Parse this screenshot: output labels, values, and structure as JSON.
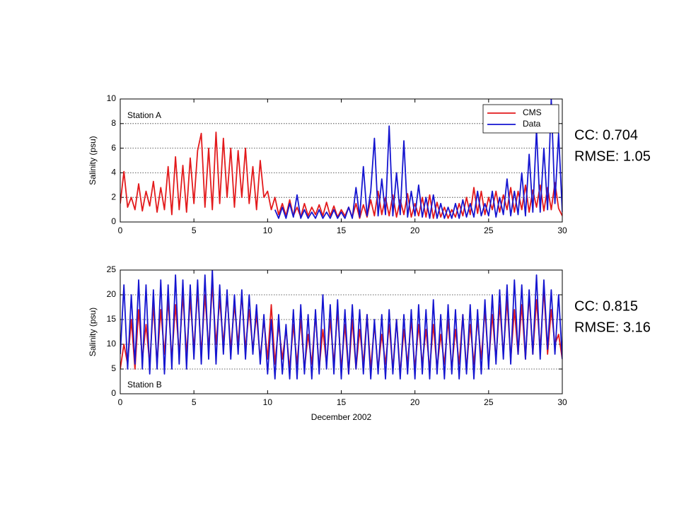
{
  "chart_data": [
    {
      "type": "line",
      "label": "Station A",
      "ylabel": "Salinity (psu)",
      "stats": [
        "CC: 0.704",
        "RMSE: 1.05"
      ],
      "xlim": [
        0,
        30
      ],
      "xticks": [
        0,
        5,
        10,
        15,
        20,
        25,
        30
      ],
      "ylim": [
        0,
        10
      ],
      "yticks": [
        0,
        2,
        4,
        6,
        8,
        10
      ],
      "grid": true,
      "legend": "upper right",
      "x": [
        0,
        0.25,
        0.5,
        0.75,
        1,
        1.25,
        1.5,
        1.75,
        2,
        2.25,
        2.5,
        2.75,
        3,
        3.25,
        3.5,
        3.75,
        4,
        4.25,
        4.5,
        4.75,
        5,
        5.25,
        5.5,
        5.75,
        6,
        6.25,
        6.5,
        6.75,
        7,
        7.25,
        7.5,
        7.75,
        8,
        8.25,
        8.5,
        8.75,
        9,
        9.25,
        9.5,
        9.75,
        10,
        10.25,
        10.5,
        10.75,
        11,
        11.25,
        11.5,
        11.75,
        12,
        12.25,
        12.5,
        12.75,
        13,
        13.25,
        13.5,
        13.75,
        14,
        14.25,
        14.5,
        14.75,
        15,
        15.25,
        15.5,
        15.75,
        16,
        16.25,
        16.5,
        16.75,
        17,
        17.25,
        17.5,
        17.75,
        18,
        18.25,
        18.5,
        18.75,
        19,
        19.25,
        19.5,
        19.75,
        20,
        20.25,
        20.5,
        20.75,
        21,
        21.25,
        21.5,
        21.75,
        22,
        22.25,
        22.5,
        22.75,
        23,
        23.25,
        23.5,
        23.75,
        24,
        24.25,
        24.5,
        24.75,
        25,
        25.25,
        25.5,
        25.75,
        26,
        26.25,
        26.5,
        26.75,
        27,
        27.25,
        27.5,
        27.75,
        28,
        28.25,
        28.5,
        28.75,
        29,
        29.25,
        29.5,
        29.75,
        30
      ],
      "series": [
        {
          "name": "CMS",
          "color": "#e31a1c",
          "values": [
            1.5,
            4.1,
            1.2,
            2.0,
            1.0,
            3.1,
            0.9,
            2.5,
            1.3,
            3.3,
            0.8,
            2.8,
            1.0,
            4.5,
            0.6,
            5.3,
            1.0,
            4.6,
            0.8,
            5.2,
            1.5,
            5.8,
            7.2,
            1.2,
            6.0,
            1.0,
            7.3,
            1.5,
            6.8,
            2.0,
            6.0,
            1.2,
            5.8,
            2.0,
            6.0,
            1.5,
            4.5,
            1.0,
            5.0,
            2.0,
            2.5,
            1.0,
            2.0,
            0.6,
            1.5,
            0.5,
            1.8,
            0.5,
            1.2,
            0.4,
            1.5,
            0.5,
            1.2,
            0.6,
            1.4,
            0.5,
            1.6,
            0.5,
            1.3,
            0.4,
            1.0,
            0.5,
            1.2,
            0.4,
            1.5,
            0.3,
            1.4,
            0.4,
            1.8,
            0.5,
            2.5,
            0.6,
            2.0,
            0.5,
            2.2,
            0.4,
            1.8,
            0.6,
            2.3,
            0.4,
            1.5,
            0.5,
            2.0,
            0.4,
            2.2,
            0.3,
            1.6,
            0.4,
            1.2,
            0.3,
            1.0,
            0.4,
            1.5,
            0.5,
            2.0,
            0.6,
            2.8,
            0.7,
            2.5,
            0.6,
            2.0,
            1.0,
            2.5,
            0.8,
            2.2,
            1.0,
            2.8,
            0.8,
            2.5,
            1.0,
            3.0,
            0.8,
            2.6,
            1.2,
            3.0,
            0.9,
            2.8,
            1.0,
            3.2,
            1.1,
            0.5
          ]
        },
        {
          "name": "Data",
          "color": "#1515d0",
          "values": [
            null,
            null,
            null,
            null,
            null,
            null,
            null,
            null,
            null,
            null,
            null,
            null,
            null,
            null,
            null,
            null,
            null,
            null,
            null,
            null,
            null,
            null,
            null,
            null,
            null,
            null,
            null,
            null,
            null,
            null,
            null,
            null,
            null,
            null,
            null,
            null,
            null,
            null,
            null,
            null,
            null,
            null,
            1.0,
            0.3,
            1.2,
            0.3,
            1.5,
            0.4,
            2.2,
            0.3,
            1.0,
            0.3,
            0.8,
            0.3,
            1.0,
            0.3,
            0.8,
            0.3,
            1.0,
            0.3,
            0.8,
            0.3,
            1.2,
            0.3,
            2.8,
            0.4,
            4.5,
            0.5,
            2.5,
            6.8,
            0.5,
            3.5,
            0.6,
            7.8,
            0.5,
            4.0,
            0.6,
            6.6,
            0.4,
            2.5,
            0.5,
            3.0,
            0.4,
            2.0,
            0.3,
            2.2,
            0.3,
            1.5,
            0.3,
            1.2,
            0.3,
            1.5,
            0.3,
            1.8,
            0.4,
            1.5,
            0.4,
            2.5,
            0.5,
            1.5,
            0.5,
            2.5,
            0.4,
            2.0,
            0.6,
            3.5,
            0.5,
            2.5,
            0.6,
            4.0,
            0.5,
            5.5,
            0.8,
            7.5,
            0.8,
            6.0,
            1.0,
            10,
            1.5,
            7.2,
            0.8
          ]
        }
      ]
    },
    {
      "type": "line",
      "label": "Station B",
      "ylabel": "Salinity (psu)",
      "xlabel": "December 2002",
      "stats": [
        "CC: 0.815",
        "RMSE: 3.16"
      ],
      "xlim": [
        0,
        30
      ],
      "xticks": [
        0,
        5,
        10,
        15,
        20,
        25,
        30
      ],
      "ylim": [
        0,
        25
      ],
      "yticks": [
        0,
        5,
        10,
        15,
        20,
        25
      ],
      "grid": true,
      "x": [
        0,
        0.25,
        0.5,
        0.75,
        1,
        1.25,
        1.5,
        1.75,
        2,
        2.25,
        2.5,
        2.75,
        3,
        3.25,
        3.5,
        3.75,
        4,
        4.25,
        4.5,
        4.75,
        5,
        5.25,
        5.5,
        5.75,
        6,
        6.25,
        6.5,
        6.75,
        7,
        7.25,
        7.5,
        7.75,
        8,
        8.25,
        8.5,
        8.75,
        9,
        9.25,
        9.5,
        9.75,
        10,
        10.25,
        10.5,
        10.75,
        11,
        11.25,
        11.5,
        11.75,
        12,
        12.25,
        12.5,
        12.75,
        13,
        13.25,
        13.5,
        13.75,
        14,
        14.25,
        14.5,
        14.75,
        15,
        15.25,
        15.5,
        15.75,
        16,
        16.25,
        16.5,
        16.75,
        17,
        17.25,
        17.5,
        17.75,
        18,
        18.25,
        18.5,
        18.75,
        19,
        19.25,
        19.5,
        19.75,
        20,
        20.25,
        20.5,
        20.75,
        21,
        21.25,
        21.5,
        21.75,
        22,
        22.25,
        22.5,
        22.75,
        23,
        23.25,
        23.5,
        23.75,
        24,
        24.25,
        24.5,
        24.75,
        25,
        25.25,
        25.5,
        25.75,
        26,
        26.25,
        26.5,
        26.75,
        27,
        27.25,
        27.5,
        27.75,
        28,
        28.25,
        28.5,
        28.75,
        29,
        29.25,
        29.5,
        29.75,
        30
      ],
      "series": [
        {
          "color": "#e31a1c",
          "values": [
            5,
            10,
            6,
            15,
            5,
            17,
            7,
            14,
            6,
            18,
            6,
            17,
            8,
            19,
            7,
            18,
            8,
            20,
            8,
            19,
            9,
            21,
            8,
            20,
            9,
            22,
            10,
            19,
            10,
            20,
            9,
            18,
            10,
            20,
            9,
            17,
            9,
            16,
            7,
            15,
            7,
            18,
            6,
            14,
            7,
            13,
            5,
            14,
            6,
            15,
            5,
            12,
            6,
            16,
            5,
            13,
            6,
            15,
            6,
            17,
            5,
            14,
            4,
            15,
            5,
            13,
            6,
            16,
            5,
            14,
            5,
            12,
            6,
            14,
            5,
            15,
            4,
            13,
            6,
            15,
            5,
            14,
            6,
            13,
            5,
            14,
            5,
            12,
            6,
            15,
            5,
            13,
            6,
            16,
            5,
            14,
            6,
            15,
            7,
            17,
            6,
            16,
            7,
            18,
            8,
            19,
            7,
            17,
            8,
            18,
            7,
            20,
            8,
            19,
            9,
            21,
            8,
            17,
            10,
            12,
            7
          ]
        },
        {
          "color": "#1515d0",
          "values": [
            8,
            22,
            5,
            20,
            6,
            23,
            5,
            22,
            4,
            21,
            5,
            23,
            4,
            22,
            5,
            24,
            6,
            23,
            5,
            22,
            7,
            23,
            6,
            24,
            7,
            25,
            6,
            22,
            8,
            21,
            7,
            20,
            8,
            21,
            7,
            20,
            8,
            18,
            6,
            16,
            4,
            15,
            3,
            16,
            4,
            14,
            3,
            17,
            3,
            18,
            4,
            16,
            3,
            17,
            4,
            20,
            5,
            18,
            4,
            19,
            3,
            17,
            4,
            18,
            5,
            17,
            4,
            16,
            3,
            15,
            4,
            16,
            3,
            17,
            4,
            15,
            3,
            16,
            4,
            17,
            3,
            18,
            4,
            17,
            3,
            19,
            4,
            16,
            3,
            18,
            4,
            17,
            3,
            16,
            4,
            18,
            3,
            17,
            4,
            19,
            5,
            20,
            6,
            21,
            7,
            22,
            6,
            23,
            8,
            22,
            7,
            21,
            8,
            24,
            7,
            23,
            9,
            21,
            8,
            20,
            7
          ]
        }
      ]
    }
  ]
}
